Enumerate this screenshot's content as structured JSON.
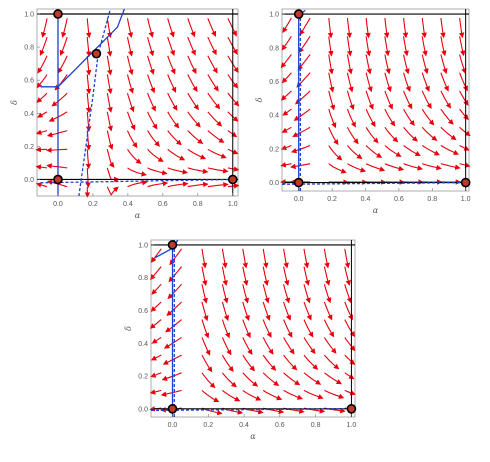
{
  "colors": {
    "stream": "#e8000b",
    "nullcline": "#1f3fd0",
    "axis_line": "#000000",
    "equilibrium_fill": "#c0392b",
    "frame": "#9a9a9a"
  },
  "chart_data": [
    {
      "type": "streamplot",
      "xlabel": "α",
      "ylabel": "δ",
      "xlim": [
        -0.12,
        1.03
      ],
      "ylim": [
        -0.1,
        1.03
      ],
      "xticks": [
        "0.0",
        "0.2",
        "0.4",
        "0.6",
        "0.8",
        "1.0"
      ],
      "yticks": [
        "0.0",
        "0.2",
        "0.4",
        "0.6",
        "0.8",
        "1.0"
      ],
      "equilibria": [
        {
          "x": 0.0,
          "y": 1.0
        },
        {
          "x": 0.22,
          "y": 0.76
        },
        {
          "x": 0.0,
          "y": 0.0
        },
        {
          "x": 1.0,
          "y": 0.0
        }
      ],
      "nullclines": [
        {
          "style": "solid",
          "points": [
            [
              0.0,
              -0.1
            ],
            [
              0.0,
              1.03
            ]
          ]
        },
        {
          "style": "solid",
          "points": [
            [
              -0.1,
              0.56
            ],
            [
              0.0,
              0.56
            ],
            [
              0.34,
              0.92
            ],
            [
              0.38,
              1.03
            ]
          ]
        },
        {
          "style": "dashed",
          "points": [
            [
              0.12,
              -0.1
            ],
            [
              0.16,
              0.2
            ],
            [
              0.2,
              0.5
            ],
            [
              0.23,
              0.76
            ],
            [
              0.3,
              1.03
            ]
          ]
        },
        {
          "style": "dashed",
          "points": [
            [
              -0.1,
              -0.02
            ],
            [
              1.0,
              0.0
            ]
          ]
        }
      ]
    },
    {
      "type": "streamplot",
      "xlabel": "α",
      "ylabel": "δ",
      "xlim": [
        -0.1,
        1.02
      ],
      "ylim": [
        -0.05,
        1.03
      ],
      "xticks": [
        "0.0",
        "0.2",
        "0.4",
        "0.6",
        "0.8",
        "1.0"
      ],
      "yticks": [
        "0.0",
        "0.2",
        "0.4",
        "0.6",
        "0.8",
        "1.0"
      ],
      "equilibria": [
        {
          "x": 0.0,
          "y": 1.0
        },
        {
          "x": 0.0,
          "y": 0.0
        },
        {
          "x": 1.0,
          "y": 0.0
        }
      ],
      "nullclines": [
        {
          "style": "solid",
          "points": [
            [
              0.0,
              -0.05
            ],
            [
              0.0,
              1.03
            ]
          ]
        },
        {
          "style": "dashed",
          "points": [
            [
              0.01,
              -0.05
            ],
            [
              0.01,
              1.0
            ],
            [
              0.05,
              1.03
            ]
          ]
        },
        {
          "style": "dashed",
          "points": [
            [
              -0.1,
              -0.01
            ],
            [
              1.0,
              0.0
            ]
          ]
        }
      ]
    },
    {
      "type": "streamplot",
      "xlabel": "α",
      "ylabel": "δ",
      "xlim": [
        -0.12,
        1.02
      ],
      "ylim": [
        -0.05,
        1.03
      ],
      "xticks": [
        "0.0",
        "0.2",
        "0.4",
        "0.6",
        "0.8",
        "1.0"
      ],
      "yticks": [
        "0.0",
        "0.2",
        "0.4",
        "0.6",
        "0.8",
        "1.0"
      ],
      "equilibria": [
        {
          "x": 0.0,
          "y": 1.0
        },
        {
          "x": 0.0,
          "y": 0.0
        },
        {
          "x": 1.0,
          "y": 0.0
        }
      ],
      "nullclines": [
        {
          "style": "solid",
          "points": [
            [
              0.0,
              -0.05
            ],
            [
              0.0,
              1.03
            ]
          ]
        },
        {
          "style": "solid",
          "points": [
            [
              -0.1,
              0.92
            ],
            [
              0.0,
              0.98
            ],
            [
              0.03,
              1.03
            ]
          ]
        },
        {
          "style": "dashed",
          "points": [
            [
              0.01,
              -0.05
            ],
            [
              0.01,
              1.03
            ]
          ]
        },
        {
          "style": "dashed",
          "points": [
            [
              -0.12,
              -0.01
            ],
            [
              1.0,
              0.0
            ]
          ]
        }
      ]
    }
  ]
}
